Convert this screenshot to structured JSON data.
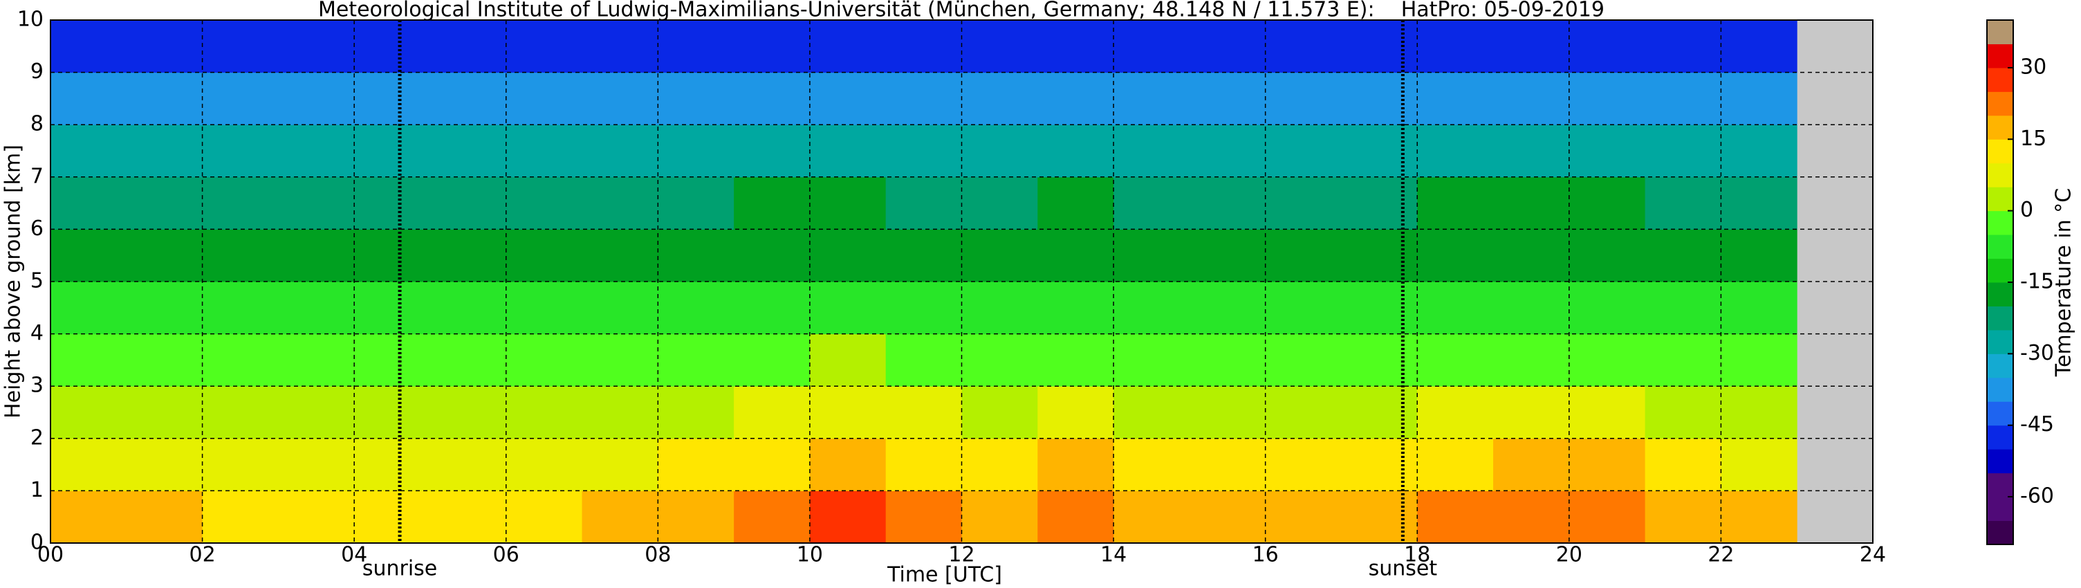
{
  "chart_data": {
    "type": "heatmap",
    "title": "Meteorological Institute of Ludwig-Maximilians-Universität (München, Germany; 48.148 N / 11.573 E):    HatPro: 05-09-2019",
    "xlabel": "Time [UTC]",
    "ylabel": "Height above ground [km]",
    "colorbar_label": "Temperature in °C",
    "xbins": [
      0,
      1,
      2,
      3,
      4,
      5,
      6,
      7,
      8,
      9,
      10,
      11,
      12,
      13,
      14,
      15,
      16,
      17,
      18,
      19,
      20,
      21,
      22,
      23
    ],
    "ybins": [
      0,
      1,
      2,
      3,
      4,
      5,
      6,
      7,
      8,
      9,
      10
    ],
    "values": [
      [
        15,
        15,
        14,
        14,
        13,
        13,
        14,
        15,
        16,
        20,
        25,
        21,
        18,
        23,
        18,
        16,
        16,
        18,
        20,
        23,
        23,
        18,
        15
      ],
      [
        9,
        9,
        8,
        8,
        7,
        7,
        8,
        9,
        10,
        13,
        17,
        14,
        11,
        15,
        11,
        10,
        10,
        11,
        13,
        15,
        15,
        11,
        9
      ],
      [
        3,
        3,
        3,
        3,
        2,
        2,
        3,
        3,
        4,
        6,
        8,
        6,
        5,
        7,
        5,
        4,
        4,
        5,
        6,
        7,
        7,
        5,
        3
      ],
      [
        -3,
        -3,
        -3,
        -3,
        -4,
        -4,
        -3,
        -3,
        -3,
        -1,
        0,
        -1,
        -2,
        -1,
        -2,
        -3,
        -3,
        -2,
        -1,
        -1,
        -1,
        -2,
        -3
      ],
      [
        -10,
        -10,
        -10,
        -10,
        -10,
        -10,
        -10,
        -10,
        -10,
        -9,
        -8,
        -9,
        -9,
        -8,
        -9,
        -10,
        -10,
        -9,
        -9,
        -8,
        -8,
        -9,
        -10
      ],
      [
        -16,
        -16,
        -16,
        -16,
        -16,
        -16,
        -16,
        -16,
        -16,
        -16,
        -16,
        -16,
        -16,
        -16,
        -16,
        -16,
        -16,
        -16,
        -16,
        -16,
        -16,
        -16,
        -16
      ],
      [
        -22,
        -22,
        -22,
        -22,
        -22,
        -22,
        -22,
        -22,
        -22,
        -20,
        -20,
        -21,
        -21,
        -20,
        -21,
        -22,
        -22,
        -21,
        -20,
        -20,
        -20,
        -21,
        -22
      ],
      [
        -30,
        -30,
        -30,
        -30,
        -30,
        -30,
        -30,
        -30,
        -30,
        -28,
        -28,
        -29,
        -29,
        -28,
        -29,
        -30,
        -30,
        -29,
        -28,
        -28,
        -28,
        -29,
        -30
      ],
      [
        -38,
        -38,
        -38,
        -38,
        -38,
        -38,
        -38,
        -38,
        -38,
        -37,
        -37,
        -37,
        -38,
        -37,
        -38,
        -38,
        -38,
        -37,
        -37,
        -37,
        -37,
        -38,
        -38
      ],
      [
        -48,
        -48,
        -48,
        -48,
        -48,
        -48,
        -48,
        -48,
        -48,
        -46,
        -46,
        -46,
        -47,
        -46,
        -47,
        -48,
        -48,
        -47,
        -46,
        -46,
        -46,
        -47,
        -48
      ]
    ],
    "xlim": [
      0,
      24
    ],
    "ylim": [
      0,
      10
    ],
    "clim": [
      -70,
      40
    ],
    "xticks": [
      {
        "value": 0,
        "label": "00"
      },
      {
        "value": 2,
        "label": "02"
      },
      {
        "value": 4,
        "label": "04"
      },
      {
        "value": 6,
        "label": "06"
      },
      {
        "value": 8,
        "label": "08"
      },
      {
        "value": 10,
        "label": "10"
      },
      {
        "value": 12,
        "label": "12"
      },
      {
        "value": 14,
        "label": "14"
      },
      {
        "value": 16,
        "label": "16"
      },
      {
        "value": 18,
        "label": "18"
      },
      {
        "value": 20,
        "label": "20"
      },
      {
        "value": 22,
        "label": "22"
      },
      {
        "value": 24,
        "label": "24"
      }
    ],
    "yticks": [
      0,
      1,
      2,
      3,
      4,
      5,
      6,
      7,
      8,
      9,
      10
    ],
    "cticks": [
      30,
      15,
      0,
      -15,
      -30,
      -45,
      -60
    ],
    "colormap": [
      "#3a0050",
      "#500a78",
      "#500a78",
      "#0000c8",
      "#0a28e6",
      "#1e64f0",
      "#1e96e6",
      "#14aad2",
      "#00a8a0",
      "#00a070",
      "#00a020",
      "#14c814",
      "#28e628",
      "#50ff1e",
      "#b4f000",
      "#e6f000",
      "#ffe600",
      "#ffb400",
      "#ff7800",
      "#ff3200",
      "#e60000",
      "#b4966e"
    ],
    "missing_color": "#c8c8c8",
    "grid": true,
    "annotations": [
      {
        "x": 4.6,
        "label": "sunrise"
      },
      {
        "x": 17.81,
        "label": "sunset"
      }
    ]
  }
}
